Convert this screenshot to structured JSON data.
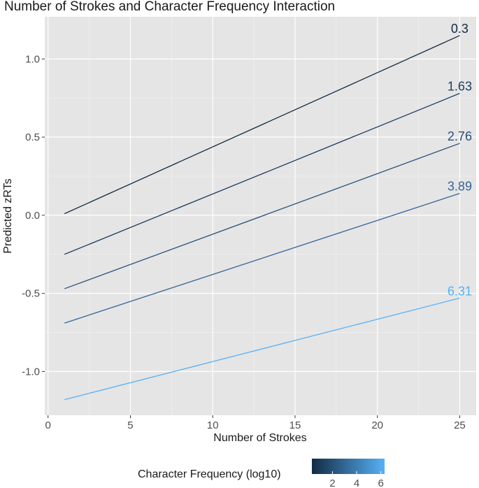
{
  "chart_data": {
    "type": "line",
    "title": "Number of Strokes and Character Frequency Interaction",
    "xlabel": "Number of Strokes",
    "ylabel": "Predicted zRTs",
    "xlim": [
      -0.2,
      26
    ],
    "ylim": [
      -1.28,
      1.27
    ],
    "x_ticks": [
      0,
      5,
      10,
      15,
      20,
      25
    ],
    "x_tick_labels": [
      "0",
      "5",
      "10",
      "15",
      "20",
      "25"
    ],
    "y_ticks": [
      1.0,
      0.5,
      0.0,
      -0.5,
      -1.0
    ],
    "y_tick_labels": [
      "1.0",
      "0.5",
      "0.0",
      "-0.5",
      "-1.0"
    ],
    "grid": true,
    "background": "#e5e5e5",
    "series": [
      {
        "label": "0.3",
        "frequency": 0.3,
        "color": "#132b43",
        "x": [
          1,
          25
        ],
        "y": [
          0.01,
          1.15
        ]
      },
      {
        "label": "1.63",
        "frequency": 1.63,
        "color": "#1f3e5e",
        "x": [
          1,
          25
        ],
        "y": [
          -0.25,
          0.78
        ]
      },
      {
        "label": "2.76",
        "frequency": 2.76,
        "color": "#2a5178",
        "x": [
          1,
          25
        ],
        "y": [
          -0.47,
          0.46
        ]
      },
      {
        "label": "3.89",
        "frequency": 3.89,
        "color": "#356496",
        "x": [
          1,
          25
        ],
        "y": [
          -0.69,
          0.14
        ]
      },
      {
        "label": "6.31",
        "frequency": 6.31,
        "color": "#56b1f7",
        "x": [
          1,
          25
        ],
        "y": [
          -1.18,
          -0.53
        ]
      }
    ],
    "legend": {
      "title": "Character Frequency (log10)",
      "position": "bottom",
      "range": [
        0.3,
        6.31
      ],
      "ticks": [
        2,
        4,
        6
      ],
      "tick_labels": [
        "2",
        "4",
        "6"
      ],
      "low_color": "#132b43",
      "high_color": "#56b1f7"
    }
  }
}
